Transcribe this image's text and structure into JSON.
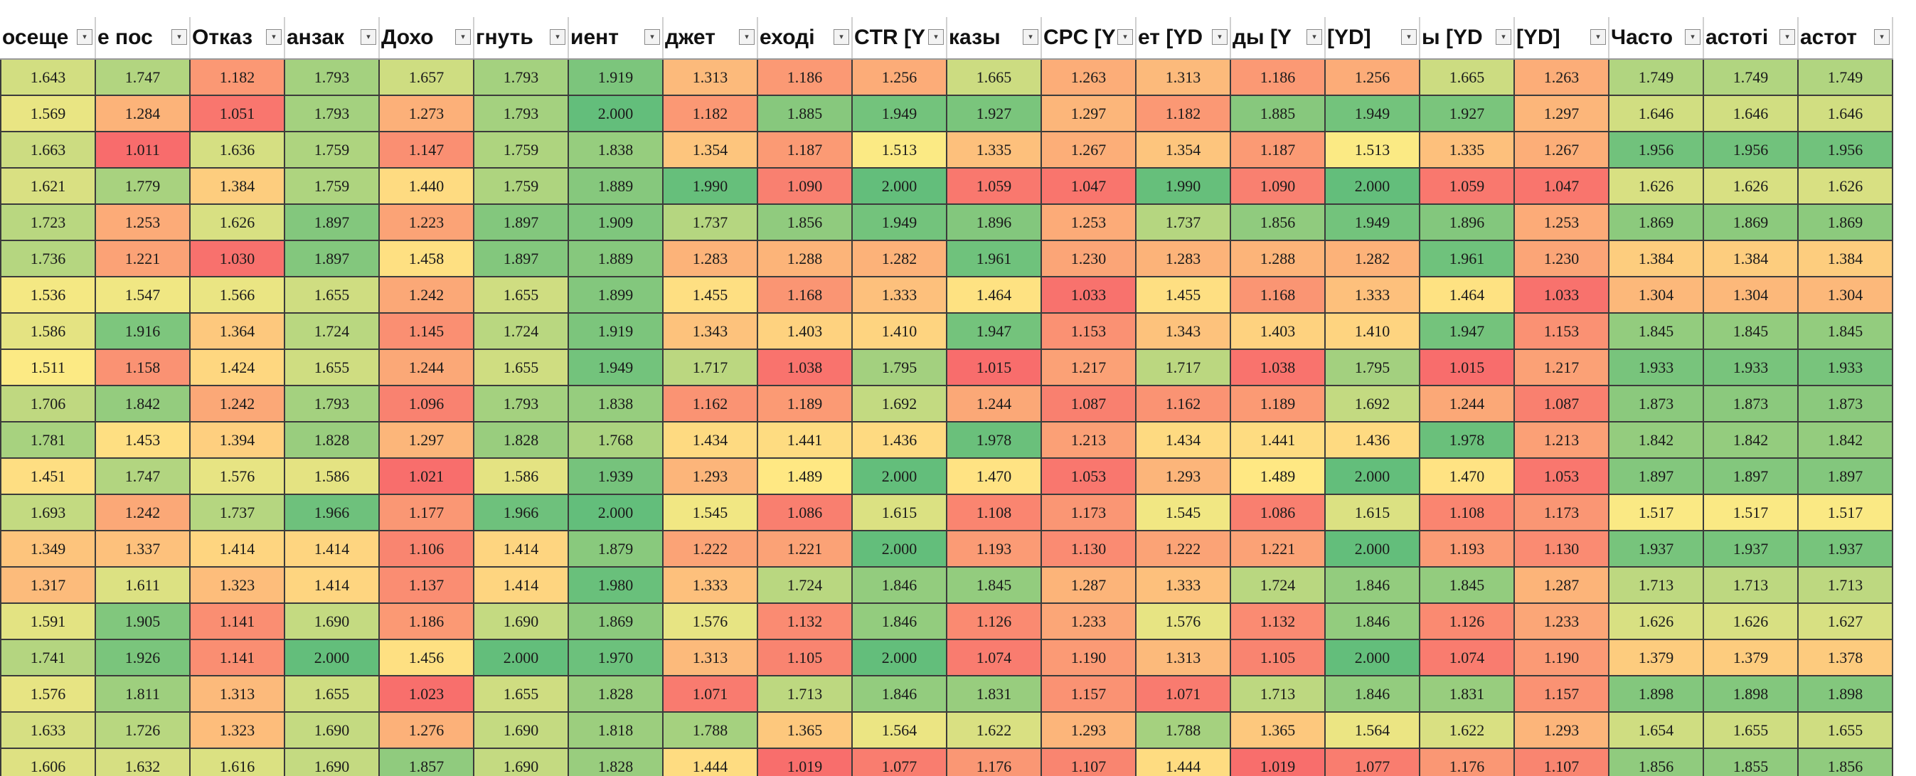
{
  "scale": {
    "min": 1.0,
    "mid": 1.5,
    "max": 2.0,
    "color_low": "#f8696b",
    "color_mid": "#ffeb84",
    "color_high": "#63be7b"
  },
  "columns": [
    {
      "label": "осеще"
    },
    {
      "label": "е пос"
    },
    {
      "label": "Отказ"
    },
    {
      "label": "анзак"
    },
    {
      "label": "Дохо"
    },
    {
      "label": "гнуть"
    },
    {
      "label": "иент"
    },
    {
      "label": "джет"
    },
    {
      "label": "еході"
    },
    {
      "label": "CTR [Y"
    },
    {
      "label": "казы"
    },
    {
      "label": "CPC [Y"
    },
    {
      "label": "ет [YD"
    },
    {
      "label": "ды [Y"
    },
    {
      "label": "[YD]"
    },
    {
      "label": "ы [YD"
    },
    {
      "label": "[YD]"
    },
    {
      "label": "Часто"
    },
    {
      "label": "астоті"
    },
    {
      "label": "астот"
    }
  ],
  "rows": [
    [
      "1.643",
      "1.747",
      "1.182",
      "1.793",
      "1.657",
      "1.793",
      "1.919",
      "1.313",
      "1.186",
      "1.256",
      "1.665",
      "1.263",
      "1.313",
      "1.186",
      "1.256",
      "1.665",
      "1.263",
      "1.749",
      "1.749",
      "1.749"
    ],
    [
      "1.569",
      "1.284",
      "1.051",
      "1.793",
      "1.273",
      "1.793",
      "2.000",
      "1.182",
      "1.885",
      "1.949",
      "1.927",
      "1.297",
      "1.182",
      "1.885",
      "1.949",
      "1.927",
      "1.297",
      "1.646",
      "1.646",
      "1.646"
    ],
    [
      "1.663",
      "1.011",
      "1.636",
      "1.759",
      "1.147",
      "1.759",
      "1.838",
      "1.354",
      "1.187",
      "1.513",
      "1.335",
      "1.267",
      "1.354",
      "1.187",
      "1.513",
      "1.335",
      "1.267",
      "1.956",
      "1.956",
      "1.956"
    ],
    [
      "1.621",
      "1.779",
      "1.384",
      "1.759",
      "1.440",
      "1.759",
      "1.889",
      "1.990",
      "1.090",
      "2.000",
      "1.059",
      "1.047",
      "1.990",
      "1.090",
      "2.000",
      "1.059",
      "1.047",
      "1.626",
      "1.626",
      "1.626"
    ],
    [
      "1.723",
      "1.253",
      "1.626",
      "1.897",
      "1.223",
      "1.897",
      "1.909",
      "1.737",
      "1.856",
      "1.949",
      "1.896",
      "1.253",
      "1.737",
      "1.856",
      "1.949",
      "1.896",
      "1.253",
      "1.869",
      "1.869",
      "1.869"
    ],
    [
      "1.736",
      "1.221",
      "1.030",
      "1.897",
      "1.458",
      "1.897",
      "1.889",
      "1.283",
      "1.288",
      "1.282",
      "1.961",
      "1.230",
      "1.283",
      "1.288",
      "1.282",
      "1.961",
      "1.230",
      "1.384",
      "1.384",
      "1.384"
    ],
    [
      "1.536",
      "1.547",
      "1.566",
      "1.655",
      "1.242",
      "1.655",
      "1.899",
      "1.455",
      "1.168",
      "1.333",
      "1.464",
      "1.033",
      "1.455",
      "1.168",
      "1.333",
      "1.464",
      "1.033",
      "1.304",
      "1.304",
      "1.304"
    ],
    [
      "1.586",
      "1.916",
      "1.364",
      "1.724",
      "1.145",
      "1.724",
      "1.919",
      "1.343",
      "1.403",
      "1.410",
      "1.947",
      "1.153",
      "1.343",
      "1.403",
      "1.410",
      "1.947",
      "1.153",
      "1.845",
      "1.845",
      "1.845"
    ],
    [
      "1.511",
      "1.158",
      "1.424",
      "1.655",
      "1.244",
      "1.655",
      "1.949",
      "1.717",
      "1.038",
      "1.795",
      "1.015",
      "1.217",
      "1.717",
      "1.038",
      "1.795",
      "1.015",
      "1.217",
      "1.933",
      "1.933",
      "1.933"
    ],
    [
      "1.706",
      "1.842",
      "1.242",
      "1.793",
      "1.096",
      "1.793",
      "1.838",
      "1.162",
      "1.189",
      "1.692",
      "1.244",
      "1.087",
      "1.162",
      "1.189",
      "1.692",
      "1.244",
      "1.087",
      "1.873",
      "1.873",
      "1.873"
    ],
    [
      "1.781",
      "1.453",
      "1.394",
      "1.828",
      "1.297",
      "1.828",
      "1.768",
      "1.434",
      "1.441",
      "1.436",
      "1.978",
      "1.213",
      "1.434",
      "1.441",
      "1.436",
      "1.978",
      "1.213",
      "1.842",
      "1.842",
      "1.842"
    ],
    [
      "1.451",
      "1.747",
      "1.576",
      "1.586",
      "1.021",
      "1.586",
      "1.939",
      "1.293",
      "1.489",
      "2.000",
      "1.470",
      "1.053",
      "1.293",
      "1.489",
      "2.000",
      "1.470",
      "1.053",
      "1.897",
      "1.897",
      "1.897"
    ],
    [
      "1.693",
      "1.242",
      "1.737",
      "1.966",
      "1.177",
      "1.966",
      "2.000",
      "1.545",
      "1.086",
      "1.615",
      "1.108",
      "1.173",
      "1.545",
      "1.086",
      "1.615",
      "1.108",
      "1.173",
      "1.517",
      "1.517",
      "1.517"
    ],
    [
      "1.349",
      "1.337",
      "1.414",
      "1.414",
      "1.106",
      "1.414",
      "1.879",
      "1.222",
      "1.221",
      "2.000",
      "1.193",
      "1.130",
      "1.222",
      "1.221",
      "2.000",
      "1.193",
      "1.130",
      "1.937",
      "1.937",
      "1.937"
    ],
    [
      "1.317",
      "1.611",
      "1.323",
      "1.414",
      "1.137",
      "1.414",
      "1.980",
      "1.333",
      "1.724",
      "1.846",
      "1.845",
      "1.287",
      "1.333",
      "1.724",
      "1.846",
      "1.845",
      "1.287",
      "1.713",
      "1.713",
      "1.713"
    ],
    [
      "1.591",
      "1.905",
      "1.141",
      "1.690",
      "1.186",
      "1.690",
      "1.869",
      "1.576",
      "1.132",
      "1.846",
      "1.126",
      "1.233",
      "1.576",
      "1.132",
      "1.846",
      "1.126",
      "1.233",
      "1.626",
      "1.626",
      "1.627"
    ],
    [
      "1.741",
      "1.926",
      "1.141",
      "2.000",
      "1.456",
      "2.000",
      "1.970",
      "1.313",
      "1.105",
      "2.000",
      "1.074",
      "1.190",
      "1.313",
      "1.105",
      "2.000",
      "1.074",
      "1.190",
      "1.379",
      "1.379",
      "1.378"
    ],
    [
      "1.576",
      "1.811",
      "1.313",
      "1.655",
      "1.023",
      "1.655",
      "1.828",
      "1.071",
      "1.713",
      "1.846",
      "1.831",
      "1.157",
      "1.071",
      "1.713",
      "1.846",
      "1.831",
      "1.157",
      "1.898",
      "1.898",
      "1.898"
    ],
    [
      "1.633",
      "1.726",
      "1.323",
      "1.690",
      "1.276",
      "1.690",
      "1.818",
      "1.788",
      "1.365",
      "1.564",
      "1.622",
      "1.293",
      "1.788",
      "1.365",
      "1.564",
      "1.622",
      "1.293",
      "1.654",
      "1.655",
      "1.655"
    ],
    [
      "1.606",
      "1.632",
      "1.616",
      "1.690",
      "1.857",
      "1.690",
      "1.828",
      "1.444",
      "1.019",
      "1.077",
      "1.176",
      "1.107",
      "1.444",
      "1.019",
      "1.077",
      "1.176",
      "1.107",
      "1.856",
      "1.855",
      "1.856"
    ]
  ]
}
